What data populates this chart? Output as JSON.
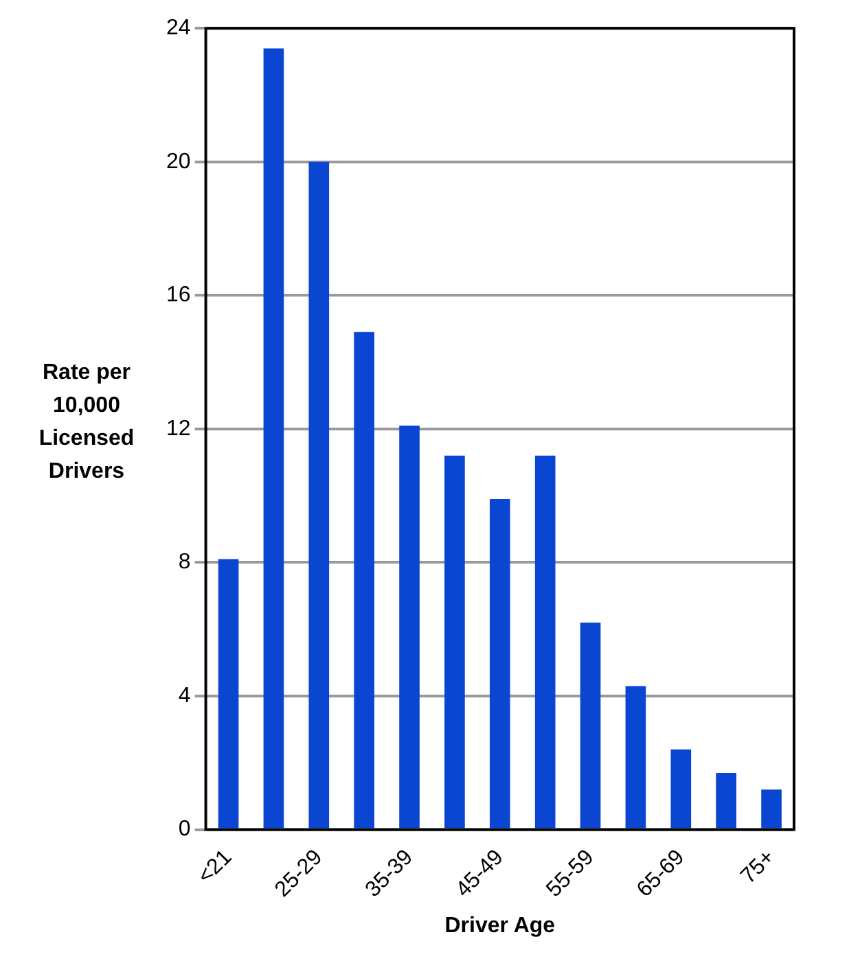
{
  "chart_data": {
    "type": "bar",
    "xlabel": "Driver Age",
    "ylabel": "Rate per 10,000 Licensed Drivers",
    "categories": [
      "<21",
      null,
      "25-29",
      null,
      "35-39",
      null,
      "45-49",
      null,
      "55-59",
      null,
      "65-69",
      null,
      "75+"
    ],
    "values": [
      8.1,
      23.4,
      20.0,
      14.9,
      12.1,
      11.2,
      9.9,
      11.2,
      6.2,
      4.3,
      2.4,
      1.7,
      1.2
    ],
    "color": "#0a46d2",
    "ylim": [
      0,
      24
    ],
    "yticks": [
      0,
      4,
      8,
      12,
      16,
      20,
      24
    ],
    "grid": "y",
    "legend": false
  }
}
